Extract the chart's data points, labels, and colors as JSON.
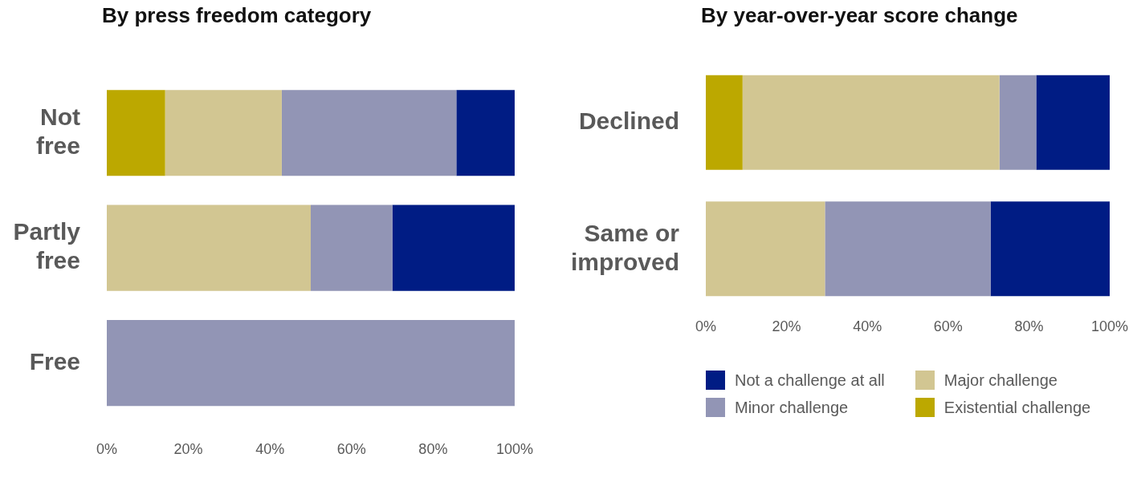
{
  "chart_data": [
    {
      "type": "bar",
      "title": "By press freedom category",
      "orientation": "horizontal",
      "stacked": true,
      "legend": false,
      "categories": [
        "Not free",
        "Partly free",
        "Free"
      ],
      "series": [
        {
          "color": "#bca800",
          "values": [
            14.3,
            0,
            0
          ]
        },
        {
          "color": "#d2c692",
          "values": [
            28.6,
            50,
            0
          ]
        },
        {
          "color": "#9295b5",
          "values": [
            42.8,
            20,
            100
          ]
        },
        {
          "color": "#001c84",
          "values": [
            14.3,
            30,
            0
          ]
        }
      ],
      "xlim": [
        0,
        100
      ],
      "xticks": [
        {
          "value": 0,
          "label": "0%"
        },
        {
          "value": 20,
          "label": "20%"
        },
        {
          "value": 40,
          "label": "40%"
        },
        {
          "value": 60,
          "label": "60%"
        },
        {
          "value": 80,
          "label": "80%"
        },
        {
          "value": 100,
          "label": "100%"
        }
      ]
    },
    {
      "type": "bar",
      "title": "By year-over-year score change",
      "orientation": "horizontal",
      "stacked": true,
      "legend": "bottom",
      "categories": [
        "Declined",
        "Same or improved"
      ],
      "series": [
        {
          "name": "Existential challenge",
          "color": "#bca800",
          "values": [
            9.1,
            0
          ]
        },
        {
          "name": "Major challenge",
          "color": "#d2c692",
          "values": [
            63.6,
            29.5
          ]
        },
        {
          "name": "Minor challenge",
          "color": "#9295b5",
          "values": [
            9.1,
            41
          ]
        },
        {
          "name": "Not a challenge at all",
          "color": "#001c84",
          "values": [
            18.2,
            29.5
          ]
        }
      ],
      "xlim": [
        0,
        100
      ],
      "xticks": [
        {
          "value": 0,
          "label": "0%"
        },
        {
          "value": 20,
          "label": "20%"
        },
        {
          "value": 40,
          "label": "40%"
        },
        {
          "value": 60,
          "label": "60%"
        },
        {
          "value": 80,
          "label": "80%"
        },
        {
          "value": 100,
          "label": "100%"
        }
      ]
    }
  ]
}
